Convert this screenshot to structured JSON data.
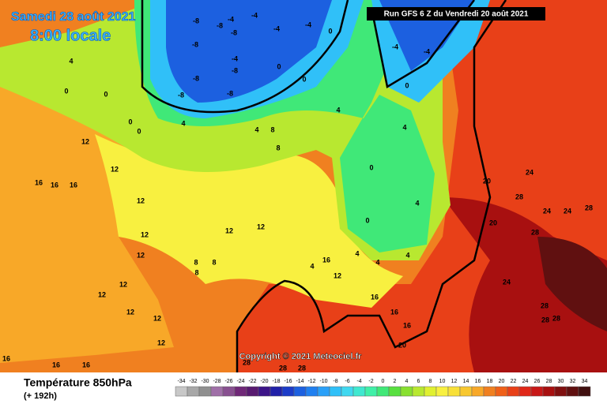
{
  "header": {
    "date": "Samedi 28 août 2021",
    "time": "8:00 locale",
    "run": "Run GFS 6 Z du Vendredi 20 août 2021"
  },
  "copyright": "Copyright © 2021 Meteociel.fr",
  "legend": {
    "title": "Température 850hPa",
    "lead": "(+ 192h)",
    "ticks": [
      -34,
      -32,
      -30,
      -28,
      -26,
      -24,
      -22,
      -20,
      -18,
      -16,
      -14,
      -12,
      -10,
      -8,
      -6,
      -4,
      -2,
      0,
      2,
      4,
      6,
      8,
      10,
      12,
      14,
      16,
      18,
      20,
      22,
      24,
      26,
      28,
      30,
      32,
      34
    ],
    "colors": [
      "#c8c8c8",
      "#a8a8a8",
      "#909090",
      "#a070a8",
      "#885090",
      "#702878",
      "#581a70",
      "#3c1488",
      "#2020a8",
      "#1c3cc8",
      "#1c60e0",
      "#2080f0",
      "#2aa0f8",
      "#30c0f8",
      "#40d8f0",
      "#40e8d0",
      "#40f0a8",
      "#40e878",
      "#58e040",
      "#88e030",
      "#b8e830",
      "#e0f030",
      "#f8f040",
      "#f8e038",
      "#f8c830",
      "#f8a828",
      "#f08020",
      "#f06018",
      "#e84018",
      "#e02818",
      "#c81818",
      "#a81010",
      "#801010",
      "#601010",
      "#401010"
    ]
  },
  "contour_labels": [
    -8,
    -4,
    -8,
    -8,
    -8,
    -4,
    -8,
    -8,
    -8,
    -8,
    0,
    -4,
    -4,
    -4,
    0,
    0,
    0,
    0,
    0,
    4,
    4,
    0,
    4,
    8,
    8,
    4,
    0,
    0,
    4,
    4,
    -4,
    -4,
    0,
    20,
    20,
    24,
    28,
    24,
    24,
    28,
    28,
    24,
    28,
    28,
    28,
    12,
    12,
    16,
    16,
    16,
    12,
    12,
    12,
    12,
    12,
    12,
    12,
    12,
    8,
    8,
    8,
    12,
    12,
    16,
    12,
    16,
    16,
    16,
    20,
    16,
    16,
    16,
    28,
    28,
    28,
    4,
    4,
    4,
    4
  ]
}
